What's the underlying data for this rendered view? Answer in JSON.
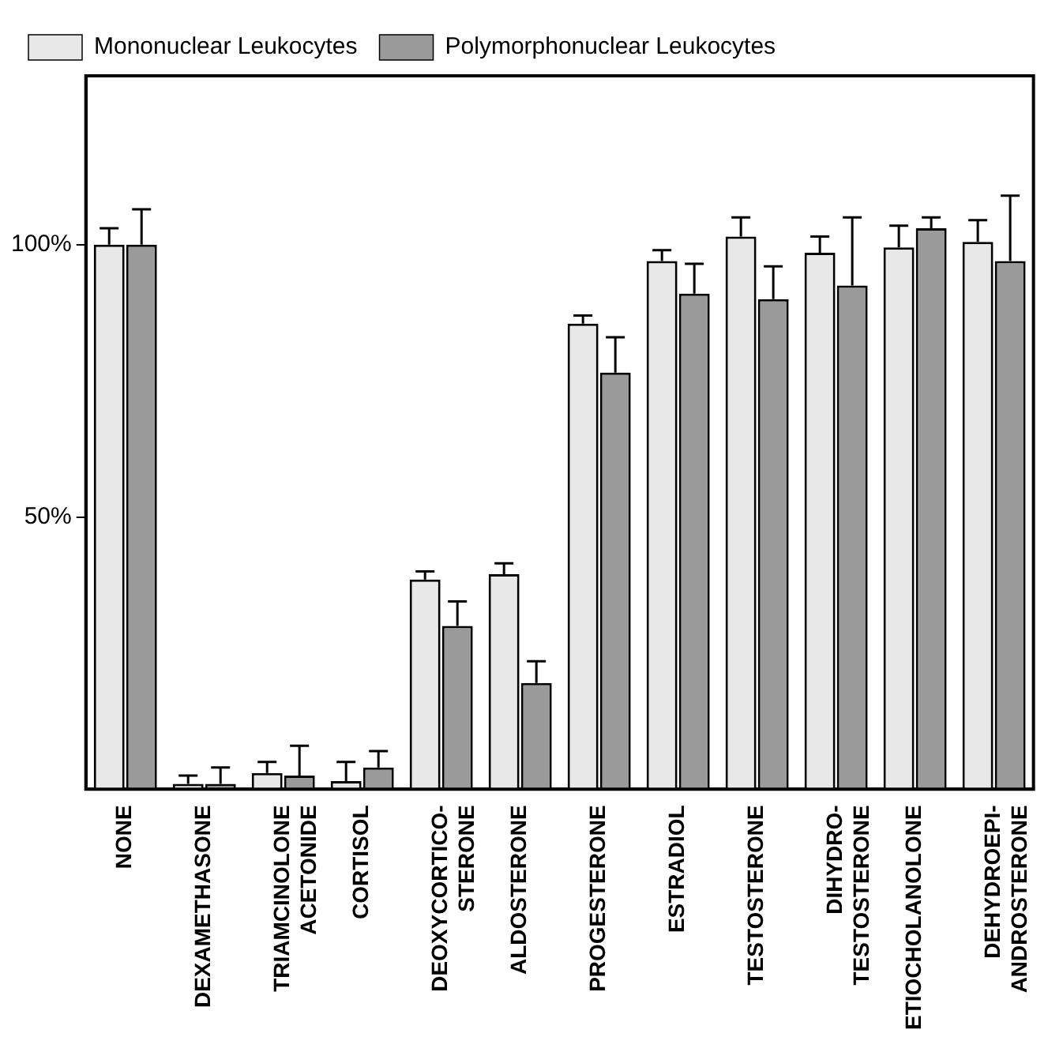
{
  "chart_data": {
    "type": "bar",
    "categories": [
      "NONE",
      "DEXAMETHASONE",
      "TRIAMCINOLONE\nACETONIDE",
      "CORTISOL",
      "DEOXYCORTICO-\nSTERONE",
      "ALDOSTERONE",
      "PROGESTERONE",
      "ESTRADIOL",
      "TESTOSTERONE",
      "DIHYDRO-\nTESTOSTERONE",
      "ETIOCHOLANOLONE",
      "DEHYDROEPI-\nANDROSTERONE"
    ],
    "series": [
      {
        "name": "Mononuclear Leukocytes",
        "color": "#e8e8e8",
        "values": [
          100,
          1,
          3,
          1.5,
          38.5,
          39.5,
          85.5,
          97,
          101.5,
          98.5,
          99.5,
          100.5
        ],
        "errors": [
          [
            100,
            103
          ],
          [
            1,
            2.5
          ],
          [
            3,
            5
          ],
          [
            1.5,
            5
          ],
          [
            38.5,
            40
          ],
          [
            39.5,
            41.5
          ],
          [
            85.5,
            87
          ],
          [
            97,
            99
          ],
          [
            101.5,
            105
          ],
          [
            98.5,
            101.5
          ],
          [
            99.5,
            103.5
          ],
          [
            100.5,
            104.5
          ]
        ]
      },
      {
        "name": "Polymorphonuclear Leukocytes",
        "color": "#9a9a9a",
        "values": [
          100,
          1,
          2.5,
          4,
          30,
          19.5,
          76.5,
          91,
          90,
          92.5,
          103,
          97
        ],
        "errors": [
          [
            100,
            106.5
          ],
          [
            1,
            4
          ],
          [
            2.5,
            8
          ],
          [
            4,
            7
          ],
          [
            30,
            34.5
          ],
          [
            19.5,
            23.5
          ],
          [
            76.5,
            83
          ],
          [
            91,
            96.5
          ],
          [
            90,
            96
          ],
          [
            92.5,
            105
          ],
          [
            103,
            105
          ],
          [
            97,
            109
          ]
        ]
      }
    ],
    "ylim": [
      0,
      131
    ],
    "yticks": [
      {
        "value": 50,
        "label": "50%"
      },
      {
        "value": 100,
        "label": "100%"
      }
    ],
    "grid": false,
    "legend": "top left"
  }
}
